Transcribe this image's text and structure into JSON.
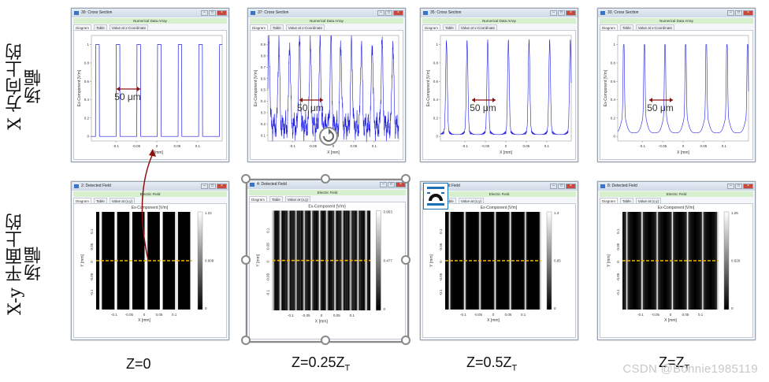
{
  "row_labels": [
    "X 方向上的场幅",
    "X-y 平面上的场幅"
  ],
  "captions": [
    {
      "main": "Z=0",
      "sub": ""
    },
    {
      "main": "Z=0.25Z",
      "sub": "T"
    },
    {
      "main": "Z=0.5Z",
      "sub": "T"
    },
    {
      "main": "Z=Z",
      "sub": "T"
    }
  ],
  "watermark": "CSDN @Bonnie1985119",
  "annotation_text": "50 μm",
  "cross_windows": [
    {
      "title": "39: Cross Section",
      "bar": "Numerical Data Array",
      "tabs": [
        "Diagram",
        "Table",
        "Value at x-Coordinate"
      ],
      "ylabel": "Ex-Component [V/m]",
      "xlabel": "X [mm]",
      "yticks": [
        "0",
        "0.2",
        "0.4",
        "0.6",
        "0.8",
        "1"
      ],
      "xticks": [
        "-0.1",
        "-0.05",
        "0",
        "0.05",
        "0.1"
      ]
    },
    {
      "title": "37: Cross Section",
      "bar": "Numerical Data Array",
      "tabs": [
        "Diagram",
        "Table",
        "Value at x-Coordinate"
      ],
      "ylabel": "Ex-Component [V/m]",
      "xlabel": "X [mm]",
      "yticks": [
        "0.1",
        "0.2",
        "0.3",
        "0.4",
        "0.5",
        "0.6",
        "0.7",
        "0.8",
        "0.9"
      ],
      "xticks": [
        "-0.1",
        "-0.05",
        "0",
        "0.05",
        "0.1"
      ]
    },
    {
      "title": "35: Cross Section",
      "bar": "Numerical Data Array",
      "tabs": [
        "Diagram",
        "Table",
        "Value at x-Coordinate"
      ],
      "ylabel": "Ex-Component [V/m]",
      "xlabel": "X [mm]",
      "yticks": [
        "0",
        "0.2",
        "0.4",
        "0.6",
        "0.8",
        "1"
      ],
      "xticks": [
        "-0.1",
        "-0.05",
        "0",
        "0.05",
        "0.1"
      ]
    },
    {
      "title": "33: Cross Section",
      "bar": "Numerical Data Array",
      "tabs": [
        "Diagram",
        "Table",
        "Value at x-Coordinate"
      ],
      "ylabel": "Ex-Component [V/m]",
      "xlabel": "X [mm]",
      "yticks": [
        "0",
        "0.2",
        "0.4",
        "0.6",
        "0.8",
        "1"
      ],
      "xticks": [
        "-0.1",
        "-0.05",
        "0",
        "0.05",
        "0.1"
      ]
    }
  ],
  "field_windows": [
    {
      "title": "2: Detected Field",
      "bar": "Electric Field",
      "tabs": [
        "Diagram",
        "Table",
        "Value at (x,y)"
      ],
      "heading": "Ex-Component  [V/m]",
      "xlabel": "X [mm]",
      "ylabel": "Y [mm]",
      "colorbar": [
        "1.22",
        "0.608",
        "0"
      ],
      "xticks": [
        "-0.1",
        "-0.05",
        "0",
        "0.05",
        "0.1"
      ],
      "yticks": [
        "0.1",
        "0.05",
        "0",
        "-0.05",
        "-0.1"
      ]
    },
    {
      "title": "4: Detected Field",
      "bar": "Electric Field",
      "tabs": [
        "Diagram",
        "Table",
        "Value at (x,y)"
      ],
      "heading": "Ex-Component  [V/m]",
      "xlabel": "X [mm]",
      "ylabel": "Y [mm]",
      "colorbar": [
        "0.953",
        "0.477",
        "0"
      ],
      "xticks": [
        "-0.1",
        "-0.05",
        "0",
        "0.05",
        "0.1"
      ],
      "yticks": [
        "0.1",
        "0.05",
        "0",
        "-0.05",
        "-0.1"
      ]
    },
    {
      "title": "6: Detected Field",
      "bar": "Electric Field",
      "tabs": [
        "Diagram",
        "Table",
        "Value at (x,y)"
      ],
      "heading": "Ex-Component  [V/m]",
      "xlabel": "X [mm]",
      "ylabel": "Y [mm]",
      "colorbar": [
        "1.3",
        "0.65",
        "0"
      ],
      "xticks": [
        "-0.1",
        "-0.05",
        "0",
        "0.05",
        "0.1"
      ],
      "yticks": [
        "0.1",
        "0.05",
        "0",
        "-0.05",
        "-0.1"
      ]
    },
    {
      "title": "8: Detected Field",
      "bar": "Electric Field",
      "tabs": [
        "Diagram",
        "Table",
        "Value at (x,y)"
      ],
      "heading": "Ex-Component  [V/m]",
      "xlabel": "X [mm]",
      "ylabel": "Y [mm]",
      "colorbar": [
        "1.25",
        "0.626",
        "0"
      ],
      "xticks": [
        "-0.1",
        "-0.05",
        "0",
        "0.05",
        "0.1"
      ],
      "yticks": [
        "0.1",
        "0.05",
        "0",
        "-0.05",
        "-0.1"
      ]
    }
  ],
  "colors": {
    "curve": "#1f1fe0",
    "dashed": "#f0b400",
    "arrow": "#8b1010"
  }
}
